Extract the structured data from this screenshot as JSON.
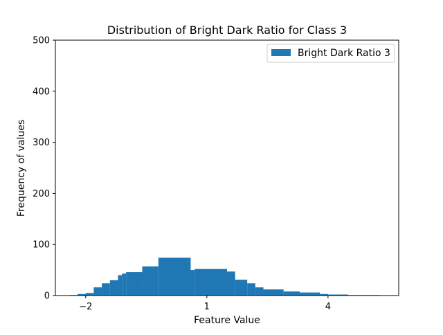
{
  "chart_data": {
    "type": "bar",
    "title": "Distribution of Bright Dark Ratio for Class 3",
    "xlabel": "Feature Value",
    "ylabel": "Frequency of values",
    "xlim": [
      -2.75,
      5.75
    ],
    "ylim": [
      0,
      500
    ],
    "xticks": [
      -2,
      1,
      4
    ],
    "xtick_labels": [
      "−2",
      "1",
      "4"
    ],
    "yticks": [
      0,
      100,
      200,
      300,
      400,
      500
    ],
    "ytick_labels": [
      "0",
      "100",
      "200",
      "300",
      "400",
      "500"
    ],
    "grid": false,
    "legend_position": "top-right",
    "series": [
      {
        "name": "Bright Dark Ratio 3",
        "color": "#1f77b4",
        "bins": [
          {
            "x0": -2.4,
            "x1": -2.2,
            "value": 1
          },
          {
            "x0": -2.2,
            "x1": -2.0,
            "value": 3
          },
          {
            "x0": -2.0,
            "x1": -1.8,
            "value": 5
          },
          {
            "x0": -1.8,
            "x1": -1.6,
            "value": 16
          },
          {
            "x0": -1.6,
            "x1": -1.4,
            "value": 24
          },
          {
            "x0": -1.4,
            "x1": -1.2,
            "value": 30
          },
          {
            "x0": -1.2,
            "x1": -1.1,
            "value": 40
          },
          {
            "x0": -1.1,
            "x1": -1.0,
            "value": 43
          },
          {
            "x0": -1.0,
            "x1": -0.6,
            "value": 46
          },
          {
            "x0": -0.6,
            "x1": -0.2,
            "value": 57
          },
          {
            "x0": -0.2,
            "x1": 0.6,
            "value": 74
          },
          {
            "x0": 0.6,
            "x1": 0.7,
            "value": 50
          },
          {
            "x0": 0.7,
            "x1": 1.5,
            "value": 52
          },
          {
            "x0": 1.5,
            "x1": 1.7,
            "value": 47
          },
          {
            "x0": 1.7,
            "x1": 2.0,
            "value": 31
          },
          {
            "x0": 2.0,
            "x1": 2.2,
            "value": 24
          },
          {
            "x0": 2.2,
            "x1": 2.4,
            "value": 16
          },
          {
            "x0": 2.4,
            "x1": 2.9,
            "value": 12
          },
          {
            "x0": 2.9,
            "x1": 3.3,
            "value": 8
          },
          {
            "x0": 3.3,
            "x1": 3.8,
            "value": 6
          },
          {
            "x0": 3.8,
            "x1": 4.0,
            "value": 3
          },
          {
            "x0": 4.0,
            "x1": 4.5,
            "value": 2
          },
          {
            "x0": 4.5,
            "x1": 5.3,
            "value": 1
          }
        ]
      }
    ]
  }
}
